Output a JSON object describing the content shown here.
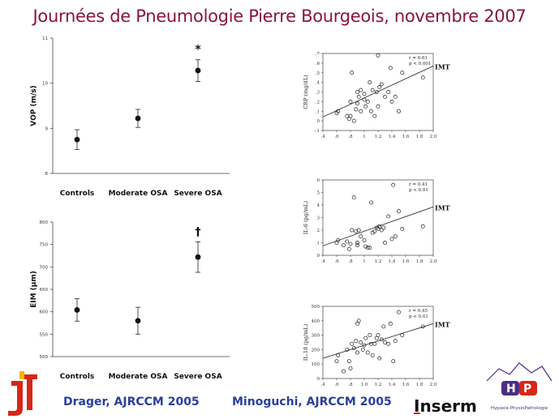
{
  "header": {
    "title": "Journées de Pneumologie Pierre Bourgeois, novembre 2007"
  },
  "citations": {
    "left": "Drager, AJRCCM 2005",
    "right": "Minoguchi, AJRCCM 2005"
  },
  "logos": {
    "inserm": "Inserm",
    "hp": "Hypoxie PhysioPathologie"
  },
  "colors": {
    "title": "#8a1538",
    "citation": "#2a3f9b",
    "logo_red": "#d62718",
    "logo_purple": "#4b2e83"
  },
  "chart_data": [
    {
      "type": "scatter",
      "ylabel": "VOP (m/s)",
      "categories": [
        "Controls",
        "Moderate OSA",
        "Severe OSA"
      ],
      "values": [
        8.75,
        9.22,
        10.28
      ],
      "errors": [
        0.22,
        0.2,
        0.24
      ],
      "ylim": [
        8,
        11
      ],
      "yticks": [
        "8",
        "9",
        "10",
        "11"
      ],
      "annotation": "*",
      "annotation_index": 2
    },
    {
      "type": "scatter",
      "ylabel": "EIM (µm)",
      "categories": [
        "Controls",
        "Moderate OSA",
        "Severe OSA"
      ],
      "values": [
        604,
        580,
        722
      ],
      "errors": [
        25,
        30,
        34
      ],
      "ylim": [
        500,
        800
      ],
      "yticks": [
        "500",
        "550",
        "600",
        "650",
        "700",
        "750",
        "800"
      ],
      "annotation": "†",
      "annotation_index": 2
    },
    {
      "type": "scatter",
      "ylabel": "CRP (mg/dL)",
      "xlabel": "IMT",
      "stats": [
        "r = 0.61",
        "p < 0.001"
      ],
      "xlim": [
        0.4,
        2.0
      ],
      "ylim": [
        -0.1,
        0.7
      ],
      "xticks": [
        ".4",
        ".6",
        ".8",
        "1",
        "1.2",
        "1.4",
        "1.6",
        "1.8",
        "2.0"
      ],
      "yticks": [
        "-.1",
        "0",
        ".1",
        ".2",
        ".3",
        ".4",
        ".5",
        ".6",
        ".7"
      ],
      "trend": [
        [
          0.4,
          0.04
        ],
        [
          2.0,
          0.57
        ]
      ],
      "points": [
        [
          0.6,
          0.08
        ],
        [
          0.62,
          0.1
        ],
        [
          0.75,
          0.05
        ],
        [
          0.78,
          0.02
        ],
        [
          0.8,
          0.05
        ],
        [
          0.8,
          0.2
        ],
        [
          0.82,
          0.5
        ],
        [
          0.85,
          0.0
        ],
        [
          0.88,
          0.12
        ],
        [
          0.9,
          0.18
        ],
        [
          0.9,
          0.3
        ],
        [
          0.92,
          0.25
        ],
        [
          0.95,
          0.32
        ],
        [
          0.95,
          0.1
        ],
        [
          1.0,
          0.28
        ],
        [
          1.0,
          0.22
        ],
        [
          1.02,
          0.15
        ],
        [
          1.05,
          0.2
        ],
        [
          1.08,
          0.4
        ],
        [
          1.1,
          0.1
        ],
        [
          1.12,
          0.32
        ],
        [
          1.15,
          0.05
        ],
        [
          1.18,
          0.3
        ],
        [
          1.2,
          0.15
        ],
        [
          1.2,
          0.68
        ],
        [
          1.22,
          0.35
        ],
        [
          1.25,
          0.38
        ],
        [
          1.3,
          0.25
        ],
        [
          1.35,
          0.3
        ],
        [
          1.38,
          0.55
        ],
        [
          1.4,
          0.2
        ],
        [
          1.45,
          0.25
        ],
        [
          1.5,
          0.1
        ],
        [
          1.55,
          0.5
        ],
        [
          1.85,
          0.45
        ]
      ]
    },
    {
      "type": "scatter",
      "ylabel": "IL-6 (pg/mL)",
      "xlabel": "IMT",
      "stats": [
        "r = 0.41",
        "p < 0.01"
      ],
      "xlim": [
        0.4,
        2.0
      ],
      "ylim": [
        0,
        6
      ],
      "xticks": [
        ".4",
        ".6",
        ".8",
        "1",
        "1.2",
        "1.4",
        "1.6",
        "1.8",
        "2.0"
      ],
      "yticks": [
        "0",
        "1",
        "2",
        "3",
        "4",
        "5",
        "6"
      ],
      "trend": [
        [
          0.4,
          0.75
        ],
        [
          2.0,
          3.85
        ]
      ],
      "points": [
        [
          0.6,
          1.0
        ],
        [
          0.62,
          1.2
        ],
        [
          0.7,
          0.8
        ],
        [
          0.75,
          1.1
        ],
        [
          0.78,
          0.5
        ],
        [
          0.8,
          0.9
        ],
        [
          0.82,
          2.0
        ],
        [
          0.85,
          4.6
        ],
        [
          0.88,
          1.9
        ],
        [
          0.9,
          0.8
        ],
        [
          0.9,
          1.0
        ],
        [
          0.92,
          2.0
        ],
        [
          0.95,
          1.5
        ],
        [
          1.0,
          1.2
        ],
        [
          1.02,
          0.7
        ],
        [
          1.05,
          0.6
        ],
        [
          1.08,
          0.6
        ],
        [
          1.1,
          4.2
        ],
        [
          1.12,
          1.8
        ],
        [
          1.15,
          1.9
        ],
        [
          1.18,
          2.2
        ],
        [
          1.2,
          2.1
        ],
        [
          1.22,
          2.3
        ],
        [
          1.25,
          2.0
        ],
        [
          1.28,
          2.2
        ],
        [
          1.3,
          1.0
        ],
        [
          1.35,
          3.1
        ],
        [
          1.4,
          1.3
        ],
        [
          1.42,
          5.6
        ],
        [
          1.45,
          1.5
        ],
        [
          1.5,
          3.5
        ],
        [
          1.55,
          2.1
        ],
        [
          1.85,
          2.3
        ]
      ]
    },
    {
      "type": "scatter",
      "ylabel": "IL-18 (pg/mL)",
      "xlabel": "IMT",
      "stats": [
        "r = 0.45",
        "p < 0.01"
      ],
      "xlim": [
        0.4,
        2.0
      ],
      "ylim": [
        0,
        500
      ],
      "xticks": [
        ".4",
        ".6",
        ".8",
        "1.0",
        "1.2",
        "1.4",
        "1.6",
        "1.8",
        "2.0"
      ],
      "yticks": [
        "0",
        "100",
        "200",
        "300",
        "400",
        "500"
      ],
      "trend": [
        [
          0.4,
          140
        ],
        [
          2.0,
          380
        ]
      ],
      "points": [
        [
          0.6,
          120
        ],
        [
          0.62,
          160
        ],
        [
          0.7,
          50
        ],
        [
          0.75,
          200
        ],
        [
          0.78,
          120
        ],
        [
          0.8,
          70
        ],
        [
          0.82,
          240
        ],
        [
          0.85,
          210
        ],
        [
          0.88,
          260
        ],
        [
          0.9,
          180
        ],
        [
          0.9,
          380
        ],
        [
          0.92,
          400
        ],
        [
          0.95,
          250
        ],
        [
          0.98,
          200
        ],
        [
          1.0,
          230
        ],
        [
          1.02,
          280
        ],
        [
          1.05,
          180
        ],
        [
          1.08,
          300
        ],
        [
          1.1,
          240
        ],
        [
          1.12,
          160
        ],
        [
          1.15,
          240
        ],
        [
          1.18,
          280
        ],
        [
          1.2,
          300
        ],
        [
          1.22,
          140
        ],
        [
          1.25,
          270
        ],
        [
          1.28,
          360
        ],
        [
          1.3,
          250
        ],
        [
          1.35,
          240
        ],
        [
          1.38,
          380
        ],
        [
          1.42,
          120
        ],
        [
          1.45,
          260
        ],
        [
          1.5,
          460
        ],
        [
          1.55,
          300
        ],
        [
          1.85,
          360
        ]
      ]
    }
  ]
}
